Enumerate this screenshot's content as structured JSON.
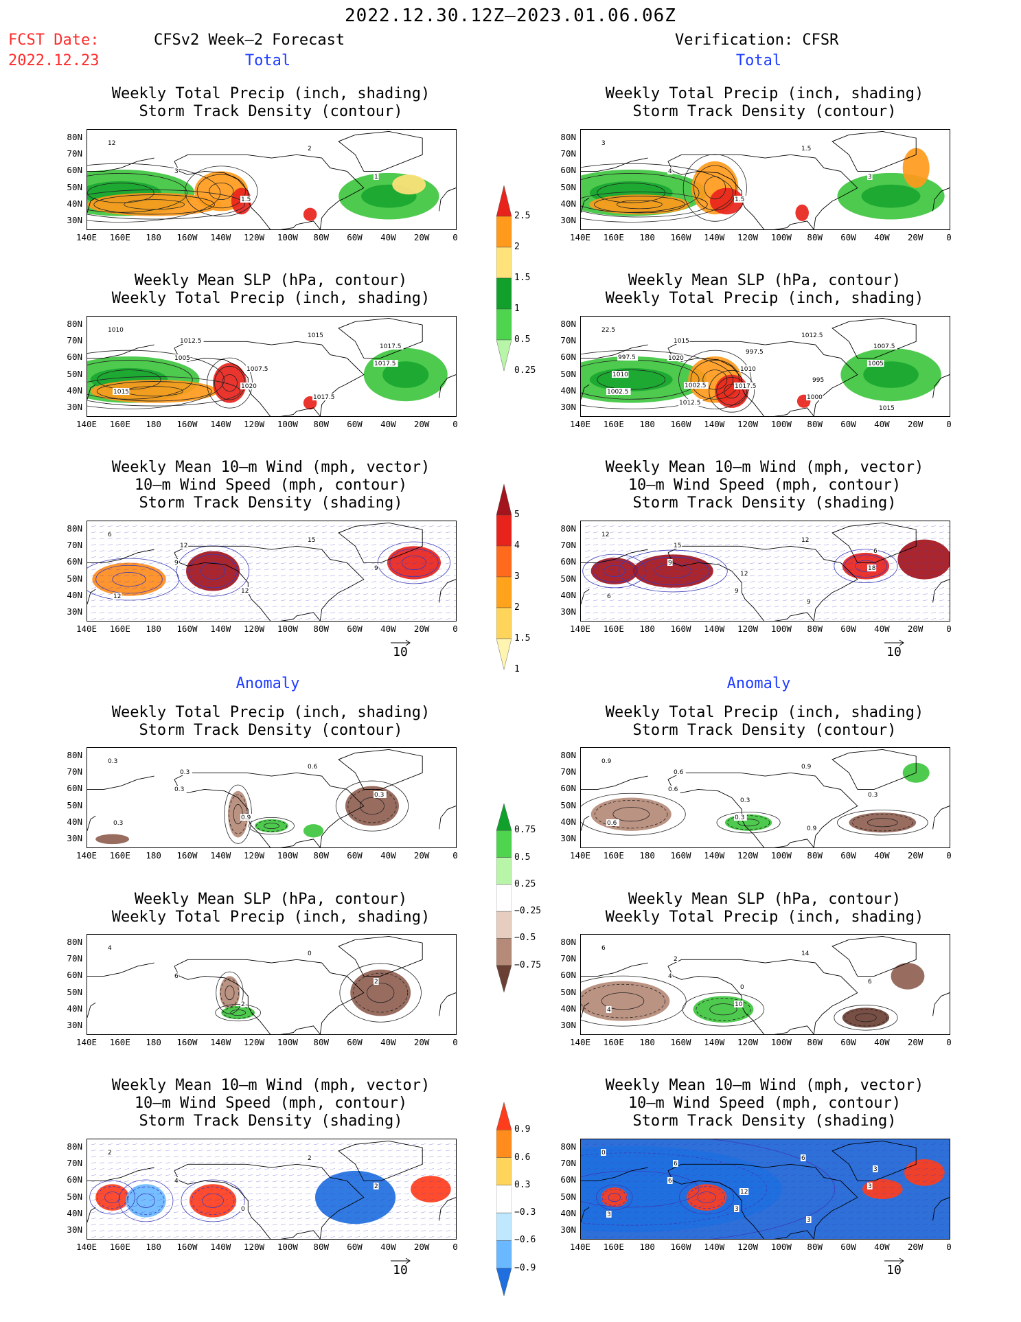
{
  "header": {
    "valid_period": "2022.12.30.12Z–2023.01.06.06Z",
    "fcst_date_label": "FCST Date:",
    "fcst_date_value": "2022.12.23",
    "left_column_title": "CFSv2 Week–2 Forecast",
    "right_column_title": "Verification: CFSR"
  },
  "sections": {
    "total": "Total",
    "anomaly": "Anomaly"
  },
  "panel_titles": {
    "precip_storm": "Weekly Total Precip (inch, shading)\nStorm Track Density (contour)",
    "slp_precip": "Weekly Mean SLP (hPa, contour)\nWeekly Total Precip (inch, shading)",
    "wind_storm": "Weekly Mean 10–m Wind (mph, vector)\n10–m Wind Speed (mph, contour)\nStorm Track Density (shading)"
  },
  "axes": {
    "lat_ticks": [
      "80N",
      "70N",
      "60N",
      "50N",
      "40N",
      "30N"
    ],
    "lon_ticks": [
      "140E",
      "160E",
      "180",
      "160W",
      "140W",
      "120W",
      "100W",
      "80W",
      "60W",
      "40W",
      "20W",
      "0"
    ]
  },
  "vector_reference": "10",
  "colorbars": {
    "total_precip": {
      "labels": [
        "2.5",
        "2",
        "1.5",
        "1",
        "0.5",
        "0.25"
      ],
      "colors": [
        "#e8231c",
        "#ff9a1c",
        "#ffe27a",
        "#11a02c",
        "#4fd44f",
        "#b8f5a8"
      ]
    },
    "total_storm": {
      "labels": [
        "5",
        "4",
        "3",
        "2",
        "1.5",
        "1"
      ],
      "colors": [
        "#a3141c",
        "#e8231c",
        "#ff6a1c",
        "#ffa21c",
        "#ffd45a",
        "#fff5b0"
      ]
    },
    "anom_precip": {
      "labels": [
        "0.75",
        "0.5",
        "0.25",
        "−0.25",
        "−0.5",
        "−0.75"
      ],
      "colors": [
        "#11a02c",
        "#4fd44f",
        "#b8f5a8",
        "#ffffff",
        "#e6cdbf",
        "#b58a78",
        "#6b4034"
      ]
    },
    "anom_storm": {
      "labels": [
        "0.9",
        "0.6",
        "0.3",
        "−0.3",
        "−0.6",
        "−0.9"
      ],
      "colors": [
        "#ff3d1c",
        "#ff8c1c",
        "#ffd45a",
        "#ffffff",
        "#bfe8ff",
        "#6ab8ff",
        "#1f6fe0"
      ]
    }
  },
  "contour_labels": {
    "fc_precip_storm": [
      "12",
      "3",
      "1.5",
      "2",
      "1"
    ],
    "ver_precip_storm": [
      "3",
      "4",
      "1.5",
      "1.5",
      "3"
    ],
    "fc_slp": [
      "1010",
      "1005",
      "1020",
      "1015",
      "1017.5",
      "1015",
      "1012.5",
      "1007.5",
      "1017.5",
      "1017.5"
    ],
    "ver_slp": [
      "22.5",
      "1020",
      "1017.5",
      "1012.5",
      "1005",
      "1002.5",
      "1015",
      "1010",
      "1000",
      "1007.5",
      "1010",
      "1012.5",
      "997.5",
      "995",
      "1015",
      "997.5",
      "1002.5"
    ],
    "fc_wind": [
      "6",
      "9",
      "12",
      "15",
      "9",
      "12",
      "12"
    ],
    "ver_wind": [
      "12",
      "9",
      "9",
      "12",
      "18",
      "6",
      "15",
      "12",
      "9",
      "6"
    ],
    "fc_anom_precip": [
      "0.3",
      "0.3",
      "0.9",
      "0.6",
      "0.3",
      "0.3",
      "0.3"
    ],
    "ver_anom_precip": [
      "0.9",
      "0.6",
      "0.3",
      "0.9",
      "0.3",
      "0.6",
      "0.6",
      "0.3",
      "0.9"
    ],
    "fc_anom_slp": [
      "4",
      "6",
      "2",
      "0",
      "2"
    ],
    "ver_anom_slp": [
      "6",
      "4",
      "10",
      "14",
      "6",
      "4",
      "2",
      "0"
    ],
    "fc_anom_wind": [
      "2",
      "4",
      "0",
      "2",
      "2"
    ],
    "ver_anom_wind": [
      "0",
      "6",
      "3",
      "6",
      "3",
      "3",
      "6",
      "12",
      "3",
      "3"
    ]
  },
  "map_fields": {
    "fc_precip_storm": [
      {
        "lon": 160,
        "lat": 47,
        "kind": "g",
        "w": 44,
        "h": 14
      },
      {
        "lon": 180,
        "lat": 40,
        "kind": "o",
        "w": 40,
        "h": 7
      },
      {
        "lon": -140,
        "lat": 48,
        "kind": "o",
        "w": 16,
        "h": 12
      },
      {
        "lon": -128,
        "lat": 42,
        "kind": "r",
        "w": 6,
        "h": 8
      },
      {
        "lon": -87,
        "lat": 34,
        "kind": "r",
        "w": 4,
        "h": 4
      },
      {
        "lon": -40,
        "lat": 45,
        "kind": "g",
        "w": 30,
        "h": 14
      },
      {
        "lon": -28,
        "lat": 52,
        "kind": "y",
        "w": 10,
        "h": 6
      }
    ],
    "ver_precip_storm": [
      {
        "lon": 170,
        "lat": 47,
        "kind": "g",
        "w": 45,
        "h": 14
      },
      {
        "lon": 175,
        "lat": 40,
        "kind": "o",
        "w": 30,
        "h": 6
      },
      {
        "lon": -140,
        "lat": 50,
        "kind": "o",
        "w": 14,
        "h": 16
      },
      {
        "lon": -133,
        "lat": 42,
        "kind": "r",
        "w": 10,
        "h": 8
      },
      {
        "lon": -88,
        "lat": 35,
        "kind": "r",
        "w": 4,
        "h": 5
      },
      {
        "lon": -35,
        "lat": 45,
        "kind": "g",
        "w": 32,
        "h": 14
      },
      {
        "lon": -20,
        "lat": 62,
        "kind": "o",
        "w": 8,
        "h": 12
      }
    ],
    "fc_slp": [
      {
        "lon": 165,
        "lat": 47,
        "kind": "g",
        "w": 42,
        "h": 14
      },
      {
        "lon": 180,
        "lat": 40,
        "kind": "o",
        "w": 38,
        "h": 7
      },
      {
        "lon": -135,
        "lat": 45,
        "kind": "r",
        "w": 10,
        "h": 12
      },
      {
        "lon": -87,
        "lat": 33,
        "kind": "r",
        "w": 4,
        "h": 4
      },
      {
        "lon": -30,
        "lat": 50,
        "kind": "g",
        "w": 25,
        "h": 16
      }
    ],
    "ver_slp": [
      {
        "lon": 170,
        "lat": 47,
        "kind": "g",
        "w": 45,
        "h": 14
      },
      {
        "lon": -140,
        "lat": 47,
        "kind": "o",
        "w": 16,
        "h": 14
      },
      {
        "lon": -130,
        "lat": 40,
        "kind": "r",
        "w": 10,
        "h": 10
      },
      {
        "lon": -87,
        "lat": 34,
        "kind": "r",
        "w": 4,
        "h": 4
      },
      {
        "lon": -35,
        "lat": 50,
        "kind": "g",
        "w": 30,
        "h": 16
      }
    ],
    "fc_wind": [
      {
        "lon": 165,
        "lat": 50,
        "kind": "s3",
        "w": 22,
        "h": 10
      },
      {
        "lon": -145,
        "lat": 55,
        "kind": "s5",
        "w": 16,
        "h": 12
      },
      {
        "lon": -25,
        "lat": 60,
        "kind": "s4",
        "w": 16,
        "h": 10
      }
    ],
    "ver_wind": [
      {
        "lon": 160,
        "lat": 55,
        "kind": "s5",
        "w": 14,
        "h": 8
      },
      {
        "lon": -165,
        "lat": 55,
        "kind": "s5",
        "w": 24,
        "h": 10
      },
      {
        "lon": -50,
        "lat": 58,
        "kind": "s4",
        "w": 14,
        "h": 8
      },
      {
        "lon": -15,
        "lat": 62,
        "kind": "s5",
        "w": 16,
        "h": 12
      }
    ],
    "fc_anom_precip": [
      {
        "lon": -130,
        "lat": 45,
        "kind": "b1",
        "w": 6,
        "h": 14
      },
      {
        "lon": -50,
        "lat": 50,
        "kind": "b2",
        "w": 16,
        "h": 12
      },
      {
        "lon": -110,
        "lat": 38,
        "kind": "pg",
        "w": 10,
        "h": 4
      },
      {
        "lon": -85,
        "lat": 35,
        "kind": "pg",
        "w": 6,
        "h": 4
      },
      {
        "lon": 155,
        "lat": 30,
        "kind": "b2",
        "w": 10,
        "h": 3
      }
    ],
    "ver_anom_precip": [
      {
        "lon": 170,
        "lat": 45,
        "kind": "b1",
        "w": 24,
        "h": 10
      },
      {
        "lon": -120,
        "lat": 40,
        "kind": "pg",
        "w": 14,
        "h": 5
      },
      {
        "lon": -40,
        "lat": 40,
        "kind": "b2",
        "w": 20,
        "h": 6
      },
      {
        "lon": -20,
        "lat": 70,
        "kind": "pg",
        "w": 8,
        "h": 6
      }
    ],
    "fc_anom_slp": [
      {
        "lon": -135,
        "lat": 50,
        "kind": "b1",
        "w": 6,
        "h": 10
      },
      {
        "lon": -45,
        "lat": 50,
        "kind": "b2",
        "w": 18,
        "h": 14
      },
      {
        "lon": -130,
        "lat": 38,
        "kind": "pg",
        "w": 10,
        "h": 4
      }
    ],
    "ver_anom_slp": [
      {
        "lon": 165,
        "lat": 45,
        "kind": "b1",
        "w": 28,
        "h": 12
      },
      {
        "lon": -135,
        "lat": 40,
        "kind": "pg",
        "w": 18,
        "h": 8
      },
      {
        "lon": -50,
        "lat": 35,
        "kind": "b3",
        "w": 14,
        "h": 6
      },
      {
        "lon": -25,
        "lat": 60,
        "kind": "b2",
        "w": 10,
        "h": 8
      }
    ],
    "fc_anom_wind": [
      {
        "lon": 155,
        "lat": 50,
        "kind": "p9",
        "w": 10,
        "h": 8
      },
      {
        "lon": -145,
        "lat": 48,
        "kind": "p9",
        "w": 14,
        "h": 10
      },
      {
        "lon": 175,
        "lat": 48,
        "kind": "n6",
        "w": 12,
        "h": 10
      },
      {
        "lon": -60,
        "lat": 50,
        "kind": "n9",
        "w": 24,
        "h": 16
      },
      {
        "lon": -15,
        "lat": 55,
        "kind": "p9",
        "w": 12,
        "h": 8
      }
    ],
    "ver_anom_wind": [
      {
        "lon": 170,
        "lat": 55,
        "kind": "n9",
        "w": 90,
        "h": 26
      },
      {
        "lon": 160,
        "lat": 50,
        "kind": "p9",
        "w": 8,
        "h": 6
      },
      {
        "lon": -145,
        "lat": 50,
        "kind": "p9",
        "w": 12,
        "h": 8
      },
      {
        "lon": -40,
        "lat": 55,
        "kind": "p9",
        "w": 12,
        "h": 6
      },
      {
        "lon": -15,
        "lat": 65,
        "kind": "p9",
        "w": 12,
        "h": 8
      }
    ]
  }
}
